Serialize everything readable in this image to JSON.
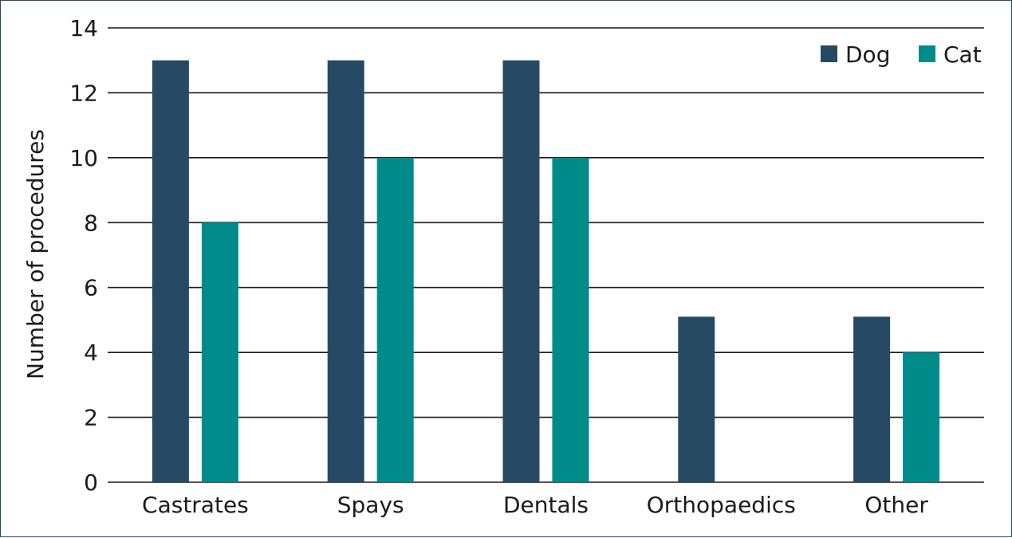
{
  "chart_data": {
    "type": "bar",
    "categories": [
      "Castrates",
      "Spays",
      "Dentals",
      "Orthopaedics",
      "Other"
    ],
    "series": [
      {
        "name": "Dog",
        "color": "#264a63",
        "values": [
          13,
          13,
          13,
          5.1,
          5.1
        ]
      },
      {
        "name": "Cat",
        "color": "#008b8b",
        "values": [
          8,
          10,
          10,
          0,
          4
        ]
      }
    ],
    "ylabel": "Number of procedures",
    "xlabel": "",
    "ylim": [
      0,
      14
    ],
    "yticks": [
      0,
      2,
      4,
      6,
      8,
      10,
      12,
      14
    ],
    "grid": true,
    "legend_position": "top-right"
  }
}
